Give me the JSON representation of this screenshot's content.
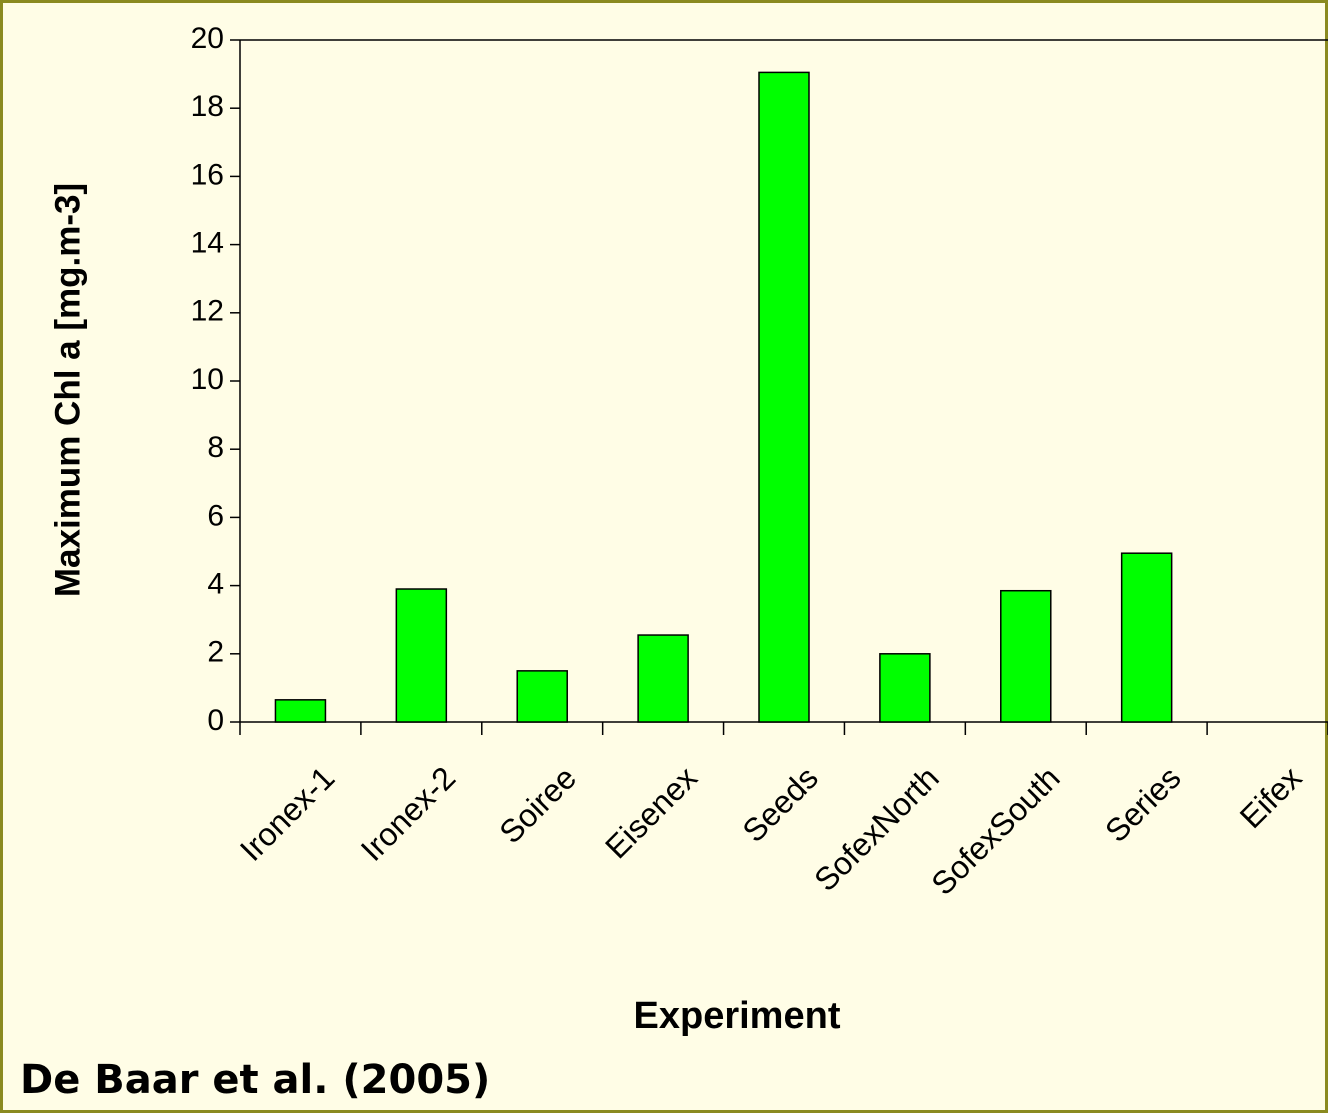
{
  "chart_data": {
    "type": "bar",
    "y_label": "Maximum Chl a [mg.m-3]",
    "x_label": "Experiment",
    "annotation": "De Baar et al. (2005)",
    "categories": [
      "Ironex-1",
      "Ironex-2",
      "Soiree",
      "Eisenex",
      "Seeds",
      "SofexNorth",
      "SofexSouth",
      "Series",
      "Eifex"
    ],
    "values": [
      0.65,
      3.9,
      1.5,
      2.55,
      19.05,
      2.0,
      3.85,
      4.95,
      null
    ],
    "color": "#00ff00",
    "ylim": [
      0,
      20
    ],
    "yticks": [
      0,
      2,
      4,
      6,
      8,
      10,
      12,
      14,
      16,
      18,
      20
    ],
    "grid": false
  }
}
